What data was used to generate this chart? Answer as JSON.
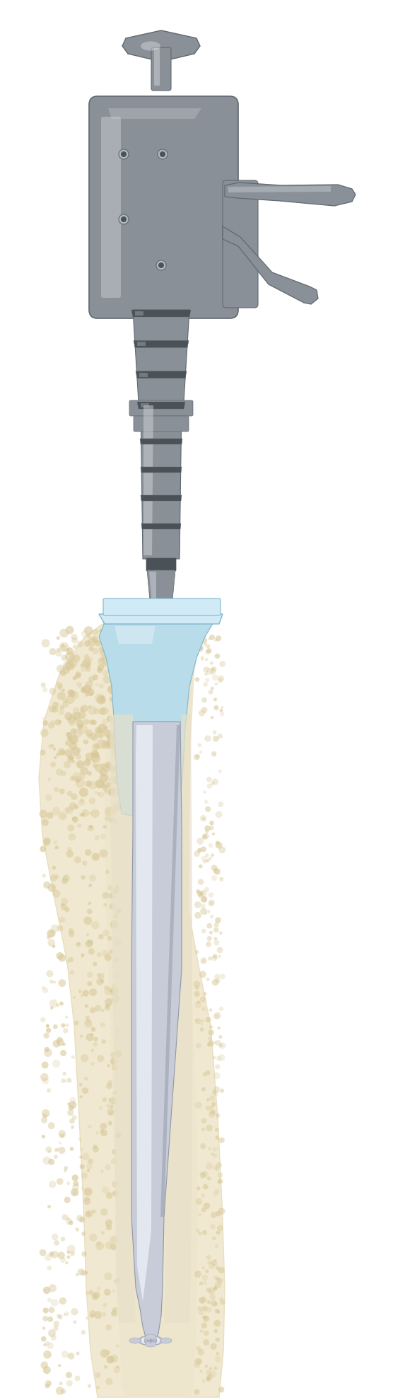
{
  "fig_width": 5.56,
  "fig_height": 19.79,
  "dpi": 100,
  "bg_color": "#ffffff",
  "gc": "#8a9098",
  "gd": "#606870",
  "gl": "#b0b8c0",
  "gh": "#d0d4da",
  "gdk": "#4a5258",
  "bone_outer": "#f0e8d0",
  "bone_cortex": "#e8dfc0",
  "bone_cancel": "#f5edd8",
  "bone_spot": "#d8c898",
  "canal_fill": "#ede5cc",
  "cement_fill": "#e8e0c8",
  "impl_base": "#c8ccd8",
  "impl_hi": "#e8ecf4",
  "impl_sh": "#9098a8",
  "nozzle_body": "#b8dcea",
  "nozzle_top": "#d0eaf6",
  "nozzle_edge": "#80b8cc"
}
